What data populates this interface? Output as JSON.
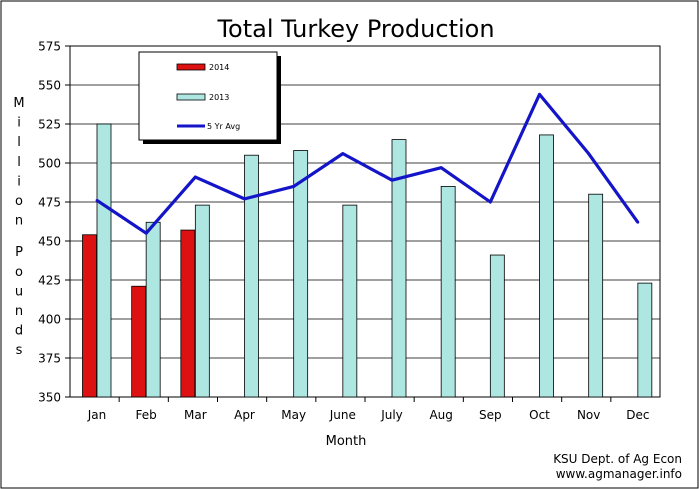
{
  "chart_data": {
    "type": "bar",
    "title": "Total Turkey Production",
    "xlabel": "Month",
    "ylabel": "Million Pounds",
    "ylim": [
      350,
      575
    ],
    "yticks": [
      350,
      375,
      400,
      425,
      450,
      475,
      500,
      525,
      550,
      575
    ],
    "grid": true,
    "legend_position": "top-left",
    "categories": [
      "Jan",
      "Feb",
      "Mar",
      "Apr",
      "May",
      "June",
      "July",
      "Aug",
      "Sep",
      "Oct",
      "Nov",
      "Dec"
    ],
    "series": [
      {
        "name": "2014",
        "kind": "bar",
        "color": "#dd1111",
        "values": [
          454,
          421,
          457,
          null,
          null,
          null,
          null,
          null,
          null,
          null,
          null,
          null
        ]
      },
      {
        "name": "2013",
        "kind": "bar",
        "color": "#aee6e2",
        "values": [
          525,
          462,
          473,
          505,
          508,
          473,
          515,
          485,
          441,
          518,
          480,
          423
        ]
      },
      {
        "name": "5 Yr Avg",
        "kind": "line",
        "color": "#1414c8",
        "values": [
          476,
          455,
          491,
          477,
          485,
          506,
          489,
          497,
          475,
          544,
          506,
          462
        ]
      }
    ],
    "credit": [
      "KSU Dept. of Ag Econ",
      "www.agmanager.info"
    ]
  }
}
